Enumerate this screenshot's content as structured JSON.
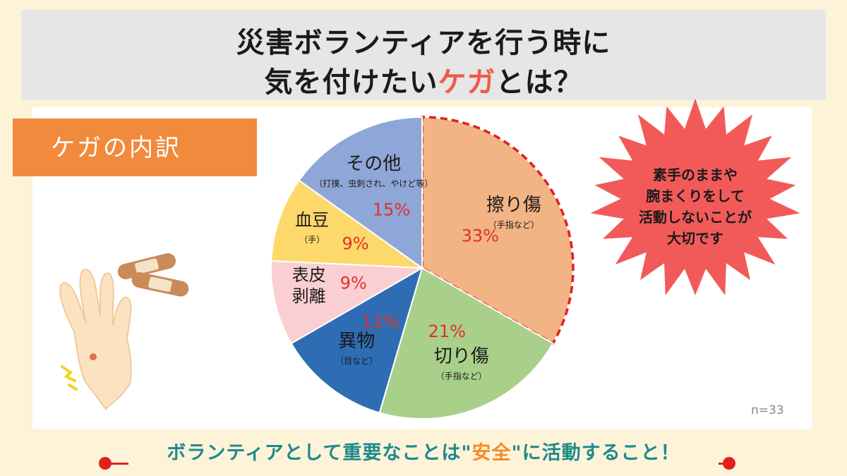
{
  "title": {
    "line1": "災害ボランティアを行う時に",
    "line2_pre": "気を付けたい",
    "line2_accent": "ケガ",
    "line2_post": "とは？"
  },
  "tag": "ケガの内訳",
  "chart_data": {
    "type": "pie",
    "n_label": "n=33",
    "start": "12 o'clock, clockwise",
    "slices": [
      {
        "name": "擦り傷",
        "name_lines": [
          "擦り傷"
        ],
        "sub": "（手指など）",
        "pct_label": "33%",
        "value": 33,
        "color": "#f2b385",
        "highlight": true
      },
      {
        "name": "切り傷",
        "name_lines": [
          "切り傷"
        ],
        "sub": "（手指など）",
        "pct_label": "21%",
        "value": 21,
        "color": "#a8d08a"
      },
      {
        "name": "異物",
        "name_lines": [
          "異物"
        ],
        "sub": "（目など）",
        "pct_label": "12%",
        "value": 12,
        "color": "#2e6db4"
      },
      {
        "name": "表皮剥離",
        "name_lines": [
          "表皮",
          "剥離"
        ],
        "sub": "",
        "pct_label": "9%",
        "value": 9,
        "color": "#f9cfd1"
      },
      {
        "name": "血豆",
        "name_lines": [
          "血豆"
        ],
        "sub": "（手）",
        "pct_label": "9%",
        "value": 9,
        "color": "#fcd96a"
      },
      {
        "name": "その他",
        "name_lines": [
          "その他"
        ],
        "sub": "（打撲、虫刺され、やけど等）",
        "pct_label": "15%",
        "value": 15,
        "color": "#8fa6d8"
      }
    ]
  },
  "callout": {
    "lines": [
      "素手のままや",
      "腕まくりをして",
      "活動しないことが",
      "大切です"
    ],
    "color": "#f25a5a"
  },
  "bottom": {
    "pre": "ボランティアとして重要なことは\"",
    "accent": "安全",
    "post": "\"に活動すること！"
  },
  "colors": {
    "accent": "#f05a4a",
    "pct": "#e0302a",
    "bottom_text": "#1e8a8a",
    "bottom_accent": "#f28c28"
  }
}
